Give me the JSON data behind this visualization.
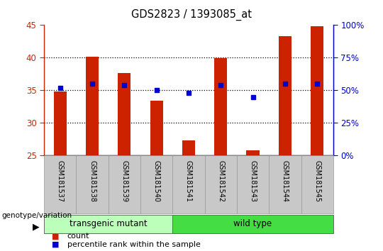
{
  "title": "GDS2823 / 1393085_at",
  "samples": [
    "GSM181537",
    "GSM181538",
    "GSM181539",
    "GSM181540",
    "GSM181541",
    "GSM181542",
    "GSM181543",
    "GSM181544",
    "GSM181545"
  ],
  "counts": [
    34.8,
    40.2,
    37.7,
    33.4,
    27.3,
    39.9,
    25.8,
    43.3,
    44.8
  ],
  "percentile_ranks_pct": [
    52.0,
    55.0,
    54.0,
    50.0,
    48.0,
    54.0,
    45.0,
    55.0,
    55.0
  ],
  "ylim_left": [
    25,
    45
  ],
  "ylim_right": [
    0,
    100
  ],
  "yticks_left": [
    25,
    30,
    35,
    40,
    45
  ],
  "yticks_right": [
    0,
    25,
    50,
    75,
    100
  ],
  "bar_color": "#CC2200",
  "dot_color": "#0000CC",
  "grid_color": "#000000",
  "xlabel_tick_bg": "#C8C8C8",
  "transgenic_color": "#BBFFBB",
  "wildtype_color": "#44DD44",
  "transgenic_label": "transgenic mutant",
  "wildtype_label": "wild type",
  "transgenic_count": 4,
  "wildtype_count": 5,
  "genotype_label": "genotype/variation",
  "legend_count_label": "count",
  "legend_pct_label": "percentile rank within the sample",
  "left_axis_color": "#CC2200",
  "right_axis_color": "#0000CC",
  "bar_width": 0.4,
  "baseline": 25
}
